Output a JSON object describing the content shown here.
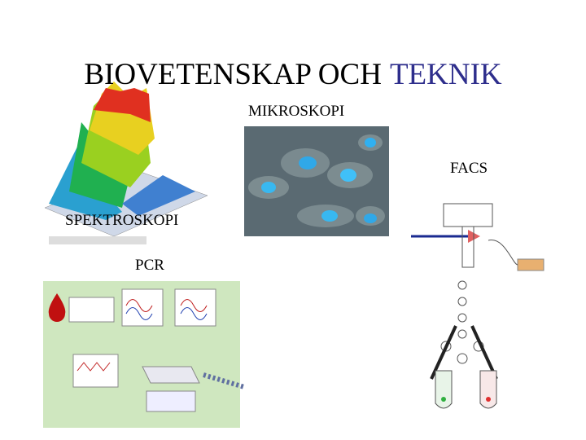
{
  "title": {
    "main": "BIOVETENSKAP OCH",
    "highlight": "TEKNIK"
  },
  "labels": {
    "microscopy": "MIKROSKOPI",
    "facs": "FACS",
    "spectroscopy": "SPEKTROSKOPI",
    "pcr": "PCR"
  }
}
